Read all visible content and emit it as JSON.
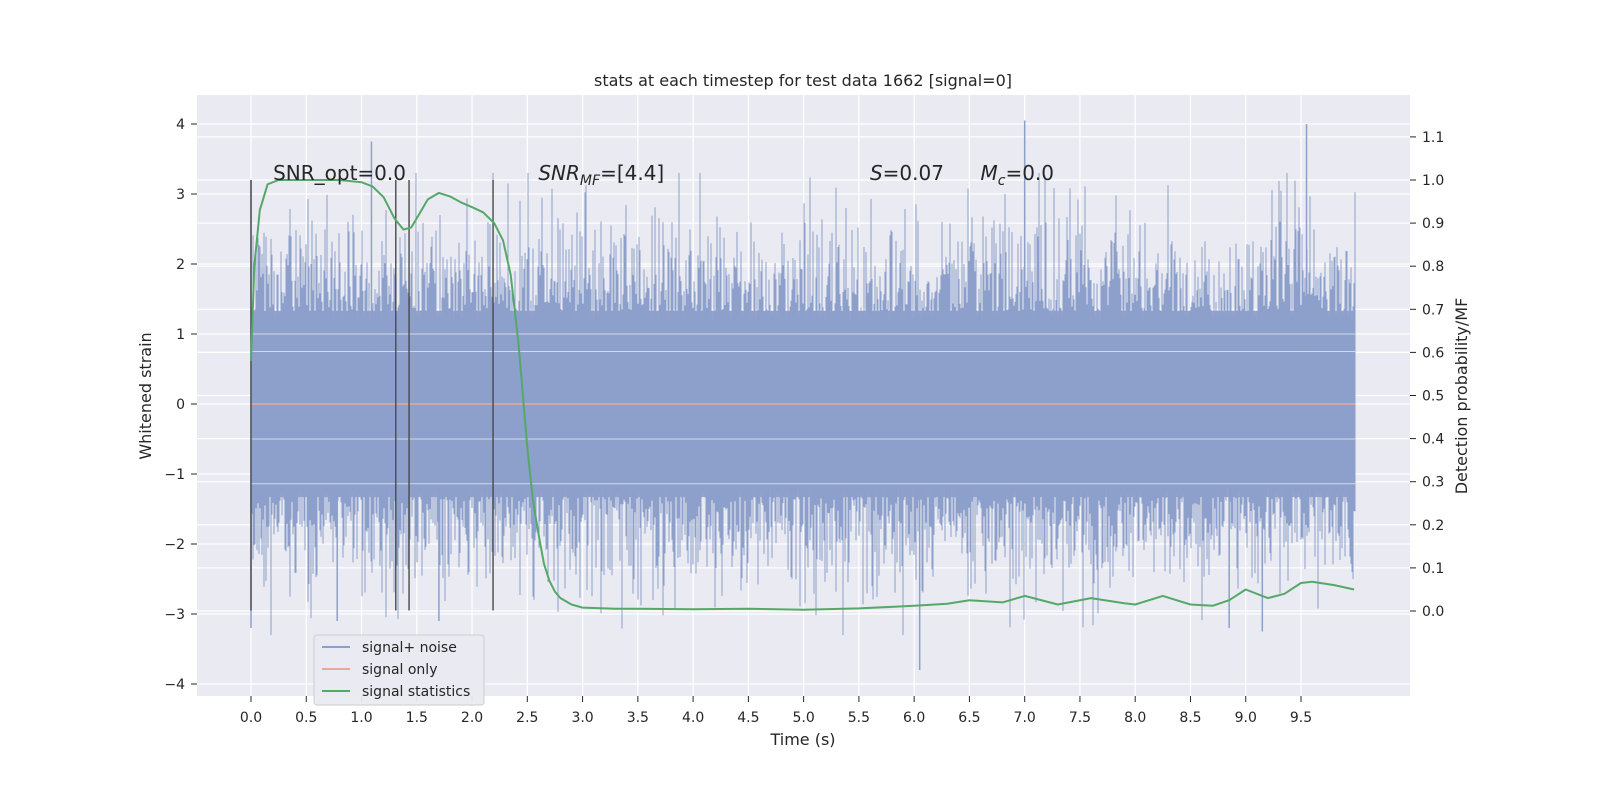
{
  "chart_data": {
    "type": "line",
    "title": "stats at each timestep for test data 1662 [signal=0]",
    "xlabel": "Time (s)",
    "ylabel_left": "Whitened strain",
    "ylabel_right": "Detection probability/MF",
    "xlim": [
      -0.49,
      10.49
    ],
    "ylim_left": [
      -4.2,
      4.4
    ],
    "ylim_right": [
      -0.2,
      1.19
    ],
    "x_ticks": [
      "0.0",
      "0.5",
      "1.0",
      "1.5",
      "2.0",
      "2.5",
      "3.0",
      "3.5",
      "4.0",
      "4.5",
      "5.0",
      "5.5",
      "6.0",
      "6.5",
      "7.0",
      "7.5",
      "8.0",
      "8.5",
      "9.0",
      "9.5"
    ],
    "y_left_ticks": [
      "4",
      "3",
      "2",
      "1",
      "0",
      "−1",
      "−2",
      "−3",
      "−4"
    ],
    "y_right_ticks": [
      "1.1",
      "1.0",
      "0.9",
      "0.8",
      "0.7",
      "0.6",
      "0.5",
      "0.4",
      "0.3",
      "0.2",
      "0.1",
      "0.0"
    ],
    "grid": true,
    "legend_position": "lower-left",
    "colors": {
      "noise": "#8da0cb",
      "signal": "#e8a89a",
      "stats": "#55a868",
      "vline": "#4a4a4a",
      "background": "#eaeaf2"
    },
    "series": [
      {
        "name": "signal+ noise",
        "kind": "noise-band",
        "x_range": [
          0.0,
          9.99
        ],
        "envelope_typical": [
          -1.4,
          1.4
        ],
        "extremes": [
          {
            "x": 0.0,
            "y": 3.2
          },
          {
            "x": 0.0,
            "y": -3.2
          },
          {
            "x": 1.09,
            "y": 3.75
          },
          {
            "x": 0.78,
            "y": -3.1
          },
          {
            "x": 1.7,
            "y": -3.1
          },
          {
            "x": 6.05,
            "y": -3.8
          },
          {
            "x": 7.0,
            "y": 4.05
          },
          {
            "x": 9.55,
            "y": 4.0
          },
          {
            "x": 9.15,
            "y": -3.25
          },
          {
            "x": 8.85,
            "y": -3.2
          }
        ]
      },
      {
        "name": "signal only",
        "x": [
          0.0,
          9.99
        ],
        "y": [
          0.0,
          0.0
        ]
      },
      {
        "name": "signal statistics",
        "x": [
          0.0,
          0.03,
          0.08,
          0.15,
          0.25,
          0.4,
          0.6,
          0.8,
          1.0,
          1.1,
          1.2,
          1.3,
          1.38,
          1.45,
          1.52,
          1.6,
          1.7,
          1.8,
          1.9,
          2.0,
          2.1,
          2.2,
          2.28,
          2.35,
          2.42,
          2.5,
          2.55,
          2.6,
          2.65,
          2.7,
          2.75,
          2.8,
          2.9,
          3.0,
          3.3,
          3.5,
          4.0,
          4.5,
          5.0,
          5.5,
          6.0,
          6.3,
          6.5,
          6.8,
          7.0,
          7.3,
          7.6,
          7.9,
          8.0,
          8.25,
          8.5,
          8.7,
          8.85,
          9.0,
          9.2,
          9.35,
          9.5,
          9.6,
          9.8,
          9.98
        ],
        "y": [
          0.58,
          0.8,
          0.93,
          0.99,
          1.0,
          1.0,
          1.0,
          1.0,
          0.995,
          0.985,
          0.96,
          0.91,
          0.885,
          0.89,
          0.92,
          0.955,
          0.97,
          0.962,
          0.948,
          0.937,
          0.925,
          0.9,
          0.86,
          0.78,
          0.62,
          0.38,
          0.26,
          0.18,
          0.11,
          0.07,
          0.045,
          0.03,
          0.015,
          0.008,
          0.005,
          0.005,
          0.004,
          0.005,
          0.003,
          0.006,
          0.012,
          0.017,
          0.025,
          0.02,
          0.035,
          0.015,
          0.03,
          0.018,
          0.015,
          0.035,
          0.015,
          0.012,
          0.025,
          0.05,
          0.03,
          0.04,
          0.065,
          0.068,
          0.06,
          0.05
        ]
      }
    ],
    "vertical_lines": [
      0.0,
      1.31,
      1.43,
      2.19
    ],
    "vline_range_left": [
      -2.95,
      3.2
    ],
    "annotations": [
      {
        "id": "snr-opt",
        "x": 0.2,
        "y": 3.3,
        "text": "SNR_opt=0.0"
      },
      {
        "id": "snr-mf",
        "x": 2.6,
        "y": 3.3,
        "main": "SNR",
        "sub": "MF",
        "rest": "=[4.4]"
      },
      {
        "id": "s-val",
        "x": 5.6,
        "y": 3.3,
        "main": "S",
        "rest": "=0.07"
      },
      {
        "id": "mc-val",
        "x": 6.6,
        "y": 3.3,
        "main": "M",
        "sub": "c",
        "rest": "=0.0"
      }
    ]
  }
}
